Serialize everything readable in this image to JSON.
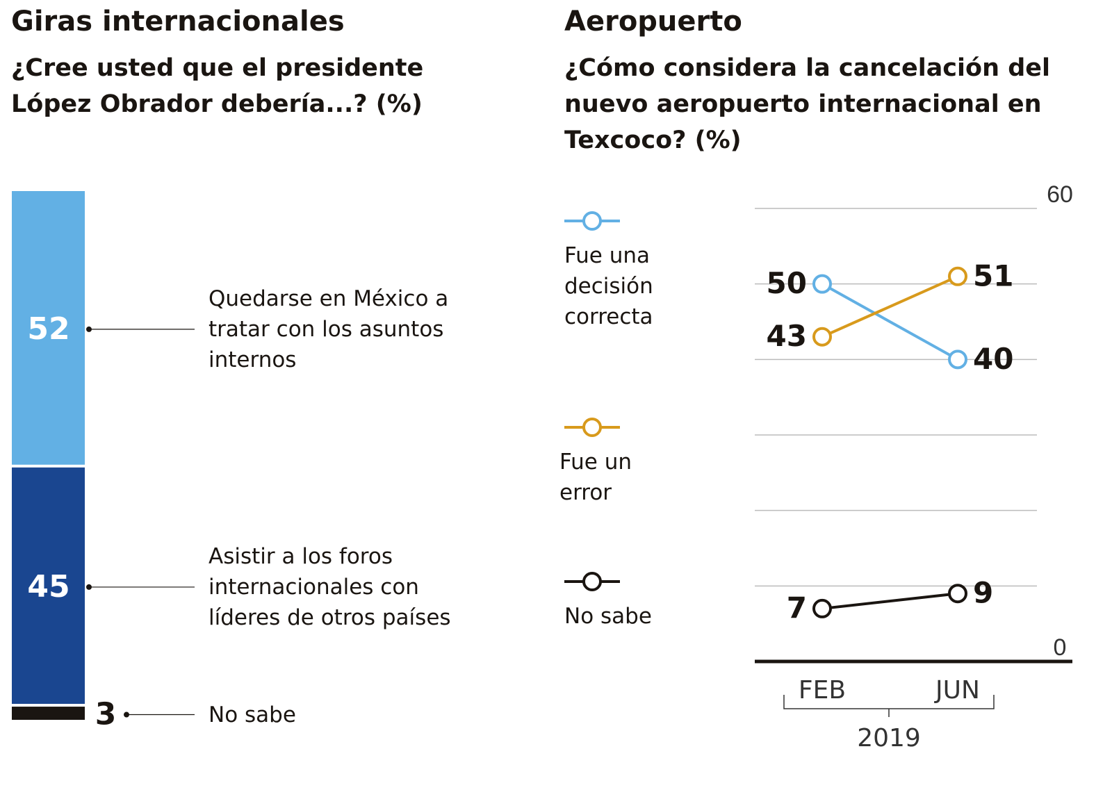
{
  "chart_data": [
    {
      "type": "stacked_bar",
      "title": "Giras internacionales",
      "subtitle": "¿Cree usted que el presidente López Obrador debería...?  (%)",
      "categories": [
        "Quedarse en México a tratar con los asuntos internos",
        "Asistir a los foros internacionales con líderes de otros países",
        "No sabe"
      ],
      "values": [
        52,
        45,
        3
      ],
      "colors": [
        "#62b0e4",
        "#1a4690",
        "#1a1511"
      ]
    },
    {
      "type": "line",
      "title": "Aeropuerto",
      "subtitle": "¿Cómo considera la cancelación del nuevo aeropuerto internacional en Texcoco?  (%)",
      "categories": [
        "FEB",
        "JUN"
      ],
      "xlabel": "2019",
      "ylim": [
        0,
        60
      ],
      "yticks": [
        0,
        {
          "value": 10,
          "label": null
        },
        {
          "value": 20,
          "label": null
        },
        {
          "value": 30,
          "label": null
        },
        {
          "value": 40,
          "label": null
        },
        {
          "value": 50,
          "label": null
        },
        60
      ],
      "grid": true,
      "series": [
        {
          "name": "Fue una decisión correcta",
          "color": "#62b0e4",
          "values": [
            50,
            40
          ]
        },
        {
          "name": "Fue un error",
          "color": "#d89a1c",
          "values": [
            43,
            51
          ]
        },
        {
          "name": "No sabe",
          "color": "#1a1511",
          "values": [
            7,
            9
          ]
        }
      ]
    }
  ]
}
